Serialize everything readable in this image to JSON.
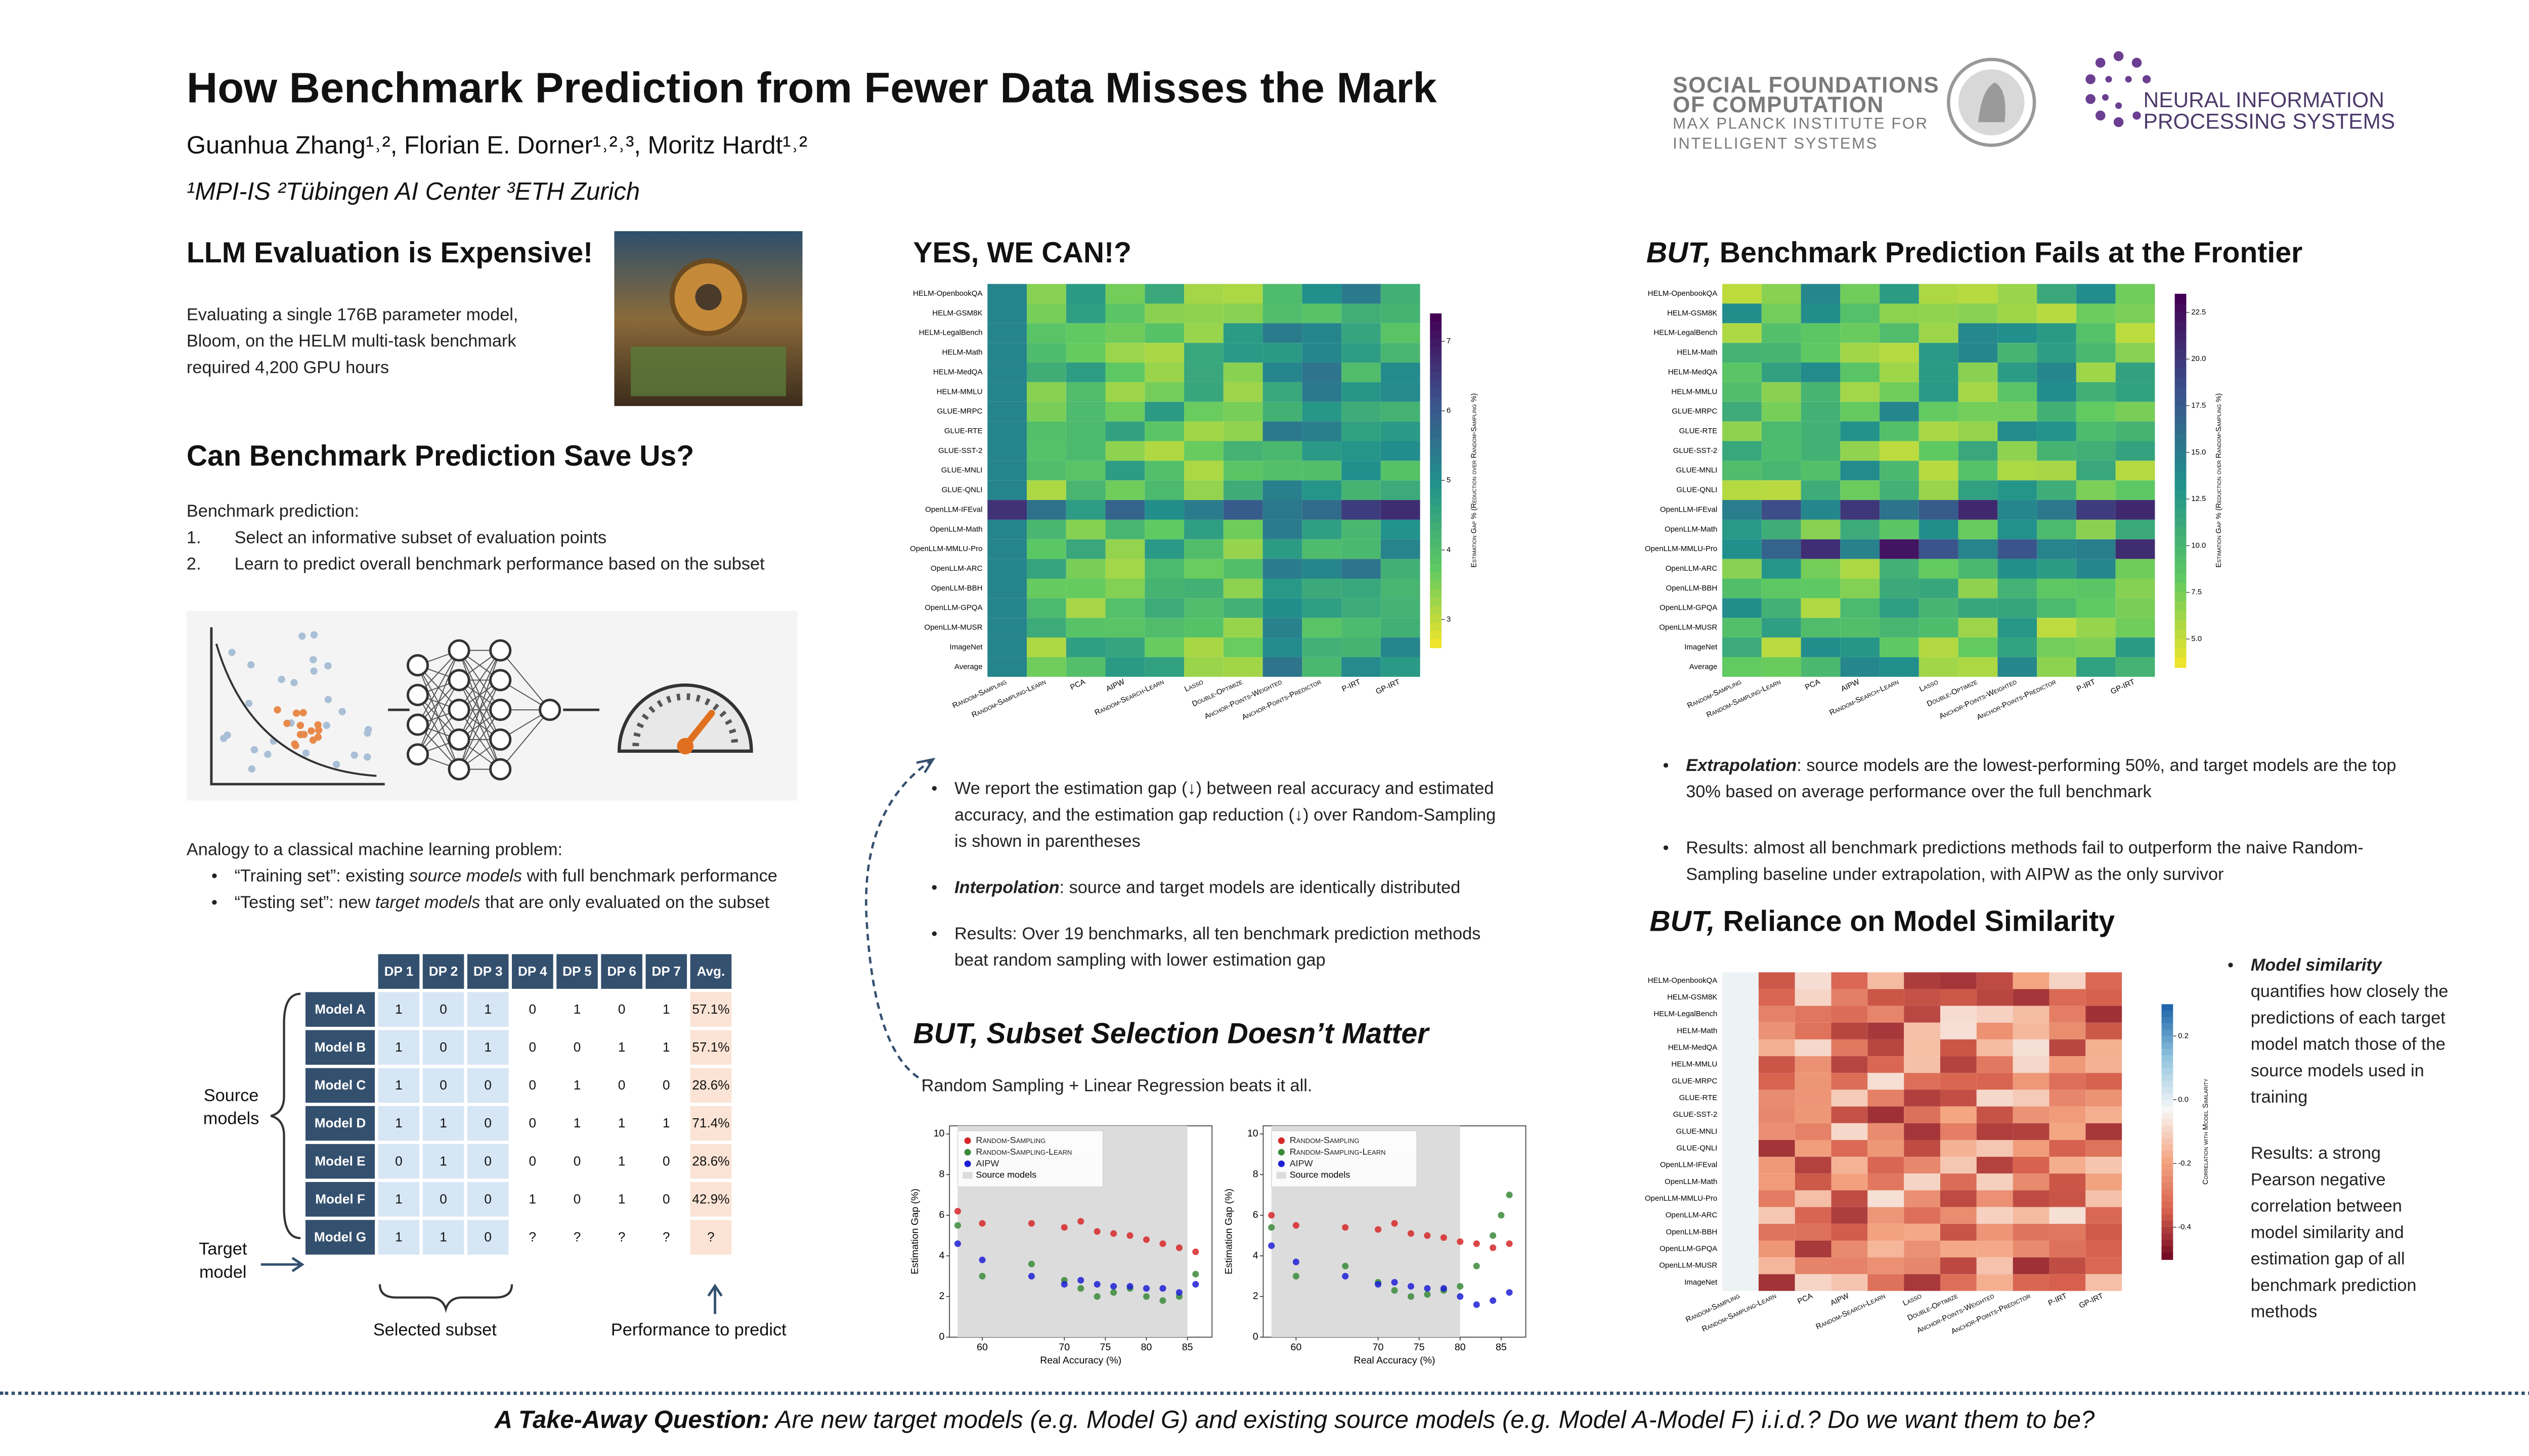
{
  "header": {
    "title": "How Benchmark Prediction from Fewer Data  Misses the Mark",
    "authors": "Guanhua Zhang¹˒², Florian E. Dorner¹˒²˒³, Moritz Hardt¹˒²",
    "affiliations": "¹MPI-IS  ²Tübingen AI Center  ³ETH Zurich",
    "logo_sfc": [
      "SOCIAL FOUNDATIONS",
      "OF COMPUTATION",
      "MAX PLANCK INSTITUTE FOR",
      "INTELLIGENT SYSTEMS"
    ],
    "logo_neurips": [
      "NEURAL INFORMATION",
      "PROCESSING SYSTEMS"
    ]
  },
  "expensive": {
    "heading": "LLM Evaluation is Expensive!",
    "text": "Evaluating a single 176B parameter model, Bloom, on the HELM multi-task benchmark required 4,200 GPU hours"
  },
  "save": {
    "heading": "Can Benchmark Prediction Save Us?",
    "intro": "Benchmark prediction:",
    "step_numbers": [
      "1.",
      "2."
    ],
    "steps": [
      "Select an informative subset of evaluation points",
      "Learn to predict overall benchmark performance based on the subset"
    ],
    "analogy": "Analogy to a classical machine learning problem:",
    "bullets": [
      {
        "a": "“Training set”: existing ",
        "em": "source models",
        "b": " with full benchmark performance"
      },
      {
        "a": "“Testing set”: new ",
        "em": "target models",
        "b": " that are only evaluated on the subset"
      }
    ]
  },
  "table": {
    "columns": [
      "DP 1",
      "DP 2",
      "DP 3",
      "DP 4",
      "DP 5",
      "DP 6",
      "DP 7",
      "Avg."
    ],
    "rows": [
      {
        "label": "Model A",
        "cells": [
          1,
          0,
          1,
          0,
          1,
          0,
          1,
          "57.1%"
        ]
      },
      {
        "label": "Model B",
        "cells": [
          1,
          0,
          1,
          0,
          0,
          1,
          1,
          "57.1%"
        ]
      },
      {
        "label": "Model C",
        "cells": [
          1,
          0,
          0,
          0,
          1,
          0,
          0,
          "28.6%"
        ]
      },
      {
        "label": "Model D",
        "cells": [
          1,
          1,
          0,
          0,
          1,
          1,
          1,
          "71.4%"
        ]
      },
      {
        "label": "Model E",
        "cells": [
          0,
          1,
          0,
          0,
          0,
          1,
          0,
          "28.6%"
        ]
      },
      {
        "label": "Model F",
        "cells": [
          1,
          0,
          0,
          1,
          0,
          1,
          0,
          "42.9%"
        ]
      },
      {
        "label": "Model G",
        "cells": [
          1,
          1,
          0,
          "?",
          "?",
          "?",
          "?",
          "?"
        ]
      }
    ],
    "source_label": "Source models",
    "target_label": "Target model",
    "subset_label": "Selected subset",
    "predict_label": "Performance to predict"
  },
  "heatmap_rows": [
    "HELM-OpenbookQA",
    "HELM-GSM8K",
    "HELM-LegalBench",
    "HELM-Math",
    "HELM-MedQA",
    "HELM-MMLU",
    "GLUE-MRPC",
    "GLUE-RTE",
    "GLUE-SST-2",
    "GLUE-MNLI",
    "GLUE-QNLI",
    "OpenLLM-IFEval",
    "OpenLLM-Math",
    "OpenLLM-MMLU-Pro",
    "OpenLLM-ARC",
    "OpenLLM-BBH",
    "OpenLLM-GPQA",
    "OpenLLM-MUSR",
    "ImageNet",
    "Average"
  ],
  "heatmap_columns": [
    "Random-Sampling",
    "Random-Sampling-Learn",
    "PCA",
    "AIPW",
    "Random-Search-Learn",
    "Lasso",
    "Double-Optimize",
    "Anchor-Points-Weighted",
    "Anchor-Points-Predictor",
    "P-IRT",
    "GP-IRT"
  ],
  "yes": {
    "heading": "YES, WE CAN!?",
    "heatmap": {
      "cbar_label": "Estimation Gap % (Reduction over Random-Sampling %)",
      "cbar_lim": [
        2.6,
        7.4
      ],
      "cbar_ticks": [
        3,
        4,
        5,
        6,
        7
      ]
    },
    "bullets": [
      {
        "a": "We report the estimation gap (↓) between real accuracy and estimated accuracy, and the estimation gap reduction (↓) over Random-Sampling is shown in parentheses"
      },
      {
        "em": "Interpolation",
        "a": ": source and target models are identically distributed"
      },
      {
        "a": "Results: Over 19 benchmarks, all ten benchmark prediction methods beat random sampling with lower estimation gap"
      }
    ]
  },
  "subset": {
    "heading": "BUT, Subset Selection Doesn’t Matter",
    "text": "Random Sampling + Linear Regression beats it all.",
    "plots": [
      {
        "type": "scatter",
        "xlabel": "Real Accuracy (%)",
        "ylabel": "Estimation Gap (%)",
        "xlim": [
          56,
          88
        ],
        "ylim": [
          0,
          10.4
        ],
        "xticks": [
          60,
          70,
          75,
          80,
          85
        ],
        "yticks": [
          0,
          2,
          4,
          6,
          8,
          10
        ],
        "source_range": [
          57,
          85
        ],
        "source_label": "Source models",
        "series": [
          {
            "name": "Random-Sampling",
            "color": "#d62728",
            "x": [
              57,
              60,
              66,
              70,
              72,
              74,
              76,
              78,
              80,
              82,
              84,
              86
            ],
            "values": [
              6.2,
              5.6,
              5.6,
              5.4,
              5.7,
              5.2,
              5.1,
              5.0,
              4.8,
              4.6,
              4.4,
              4.2
            ]
          },
          {
            "name": "Random-Sampling-Learn",
            "color": "#3a8a3a",
            "x": [
              57,
              60,
              66,
              70,
              72,
              74,
              76,
              78,
              80,
              82,
              84,
              86
            ],
            "values": [
              5.5,
              3.0,
              3.6,
              2.8,
              2.4,
              2.0,
              2.2,
              2.4,
              2.0,
              1.8,
              2.0,
              3.1
            ]
          },
          {
            "name": "AIPW",
            "color": "#1f1fd6",
            "x": [
              57,
              60,
              66,
              70,
              72,
              74,
              76,
              78,
              80,
              82,
              84,
              86
            ],
            "values": [
              4.6,
              3.8,
              3.0,
              2.6,
              2.8,
              2.6,
              2.5,
              2.5,
              2.4,
              2.4,
              2.2,
              2.6
            ]
          }
        ]
      },
      {
        "type": "scatter",
        "xlabel": "Real Accuracy (%)",
        "ylabel": "Estimation Gap (%)",
        "xlim": [
          56,
          88
        ],
        "ylim": [
          0,
          10.4
        ],
        "xticks": [
          60,
          70,
          75,
          80,
          85
        ],
        "yticks": [
          0,
          2,
          4,
          6,
          8,
          10
        ],
        "source_range": [
          57,
          80
        ],
        "source_label": "Source models",
        "series": [
          {
            "name": "Random-Sampling",
            "color": "#d62728",
            "x": [
              57,
              60,
              66,
              70,
              72,
              74,
              76,
              78,
              80,
              82,
              84,
              86
            ],
            "values": [
              6.0,
              5.5,
              5.4,
              5.3,
              5.6,
              5.1,
              5.0,
              4.9,
              4.7,
              4.6,
              4.4,
              4.6
            ]
          },
          {
            "name": "Random-Sampling-Learn",
            "color": "#3a8a3a",
            "x": [
              57,
              60,
              66,
              70,
              72,
              74,
              76,
              78,
              80,
              82,
              84,
              85,
              86
            ],
            "values": [
              5.4,
              3.0,
              3.5,
              2.7,
              2.3,
              2.0,
              2.1,
              2.3,
              2.5,
              3.5,
              5.0,
              6.0,
              7.0
            ]
          },
          {
            "name": "AIPW",
            "color": "#1f1fd6",
            "x": [
              57,
              60,
              66,
              70,
              72,
              74,
              76,
              78,
              80,
              82,
              84,
              86
            ],
            "values": [
              4.5,
              3.7,
              3.0,
              2.6,
              2.7,
              2.5,
              2.4,
              2.4,
              2.0,
              1.6,
              1.8,
              2.2
            ]
          }
        ]
      }
    ]
  },
  "frontier": {
    "heading_em": "BUT,",
    "heading": " Benchmark Prediction Fails at the Frontier",
    "heatmap": {
      "cbar_label": "Estimation Gap % (Reduction over Random-Sampling %)",
      "cbar_lim": [
        3.5,
        23.5
      ],
      "cbar_ticks": [
        {
          "value": 5,
          "label": "5.0"
        },
        7.5,
        {
          "value": 10,
          "label": "10.0"
        },
        12.5,
        {
          "value": 15,
          "label": "15.0"
        },
        17.5,
        {
          "value": 20,
          "label": "20.0"
        },
        22.5
      ]
    },
    "bullets": [
      {
        "em": "Extrapolation",
        "a": ": source models are the lowest-performing 50%, and target models are the top 30% based on average performance over the full benchmark"
      },
      {
        "a": "Results: almost all benchmark predictions methods fail to outperform the naive Random-Sampling baseline under extrapolation, with AIPW as the only survivor"
      }
    ]
  },
  "similarity": {
    "heading_em": "BUT,",
    "heading": " Reliance on Model Similarity",
    "heatmap": {
      "cbar_label": "Correlation with Model Similarity",
      "cbar_lim": [
        -0.5,
        0.3
      ],
      "cbar_ticks": [
        -0.4,
        -0.2,
        {
          "value": 0,
          "label": "0.0"
        },
        0.2
      ]
    },
    "text_em": "Model similarity",
    "text": " quantifies how closely the predictions of each target model match those of the source models used in training",
    "results": "Results: a strong Pearson negative correlation between model similarity and estimation gap of all benchmark prediction methods"
  },
  "footer": {
    "em": "A Take-Away Question:",
    "text": " Are new target models (e.g. Model G) and existing source models (e.g. Model A-Model F) i.i.d.? Do we want them to be?"
  }
}
